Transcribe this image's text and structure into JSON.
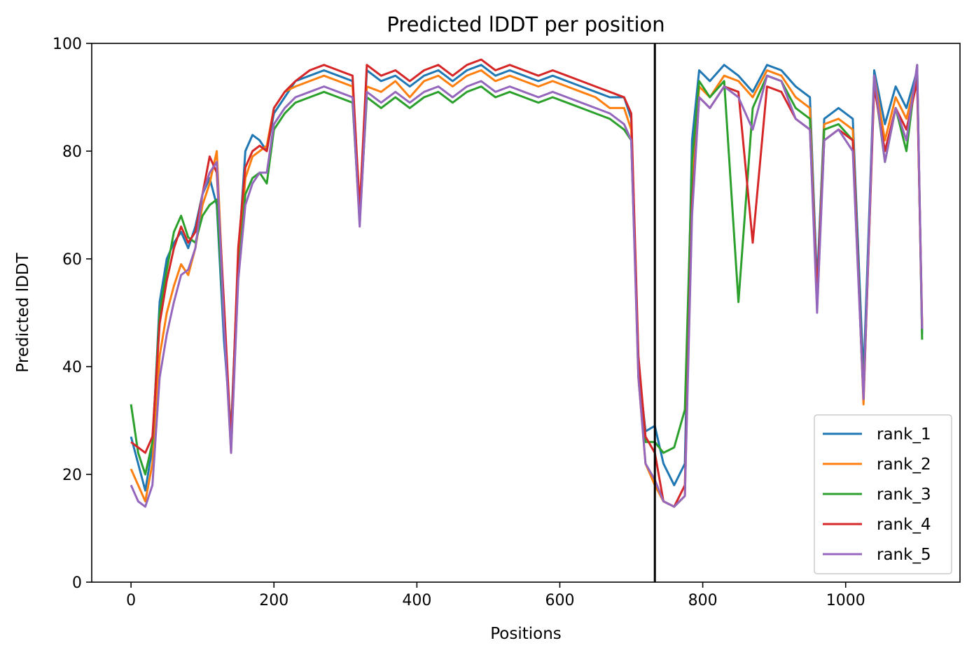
{
  "chart_data": {
    "type": "line",
    "title": "Predicted lDDT per position",
    "xlabel": "Positions",
    "ylabel": "Predicted lDDT",
    "xlim": [
      -55,
      1160
    ],
    "ylim": [
      0,
      100
    ],
    "xticks": [
      0,
      200,
      400,
      600,
      800,
      1000
    ],
    "yticks": [
      0,
      20,
      40,
      60,
      80,
      100
    ],
    "grid": false,
    "legend_position": "lower-right",
    "vline": {
      "x": 733,
      "color": "#000000"
    },
    "series": [
      {
        "name": "rank_1",
        "color": "#1f77b4",
        "x": [
          0,
          10,
          20,
          30,
          40,
          50,
          60,
          70,
          80,
          90,
          100,
          110,
          120,
          130,
          140,
          150,
          160,
          170,
          180,
          190,
          200,
          215,
          230,
          250,
          270,
          290,
          310,
          320,
          330,
          350,
          370,
          390,
          410,
          430,
          450,
          470,
          490,
          510,
          530,
          550,
          570,
          590,
          610,
          630,
          650,
          670,
          690,
          700,
          710,
          720,
          733,
          745,
          760,
          775,
          785,
          795,
          810,
          830,
          850,
          870,
          890,
          910,
          930,
          950,
          960,
          970,
          990,
          1010,
          1025,
          1040,
          1055,
          1070,
          1085,
          1100,
          1107
        ],
        "y": [
          27,
          22,
          17,
          25,
          52,
          60,
          63,
          65,
          62,
          66,
          72,
          75,
          70,
          45,
          28,
          60,
          80,
          83,
          82,
          80,
          87,
          90,
          93,
          94,
          95,
          94,
          93,
          68,
          95,
          93,
          94,
          92,
          94,
          95,
          93,
          95,
          96,
          94,
          95,
          94,
          93,
          94,
          93,
          92,
          91,
          90,
          90,
          86,
          40,
          28,
          29,
          22,
          18,
          22,
          82,
          95,
          93,
          96,
          94,
          91,
          96,
          95,
          92,
          90,
          55,
          86,
          88,
          86,
          38,
          95,
          85,
          92,
          88,
          95,
          46
        ]
      },
      {
        "name": "rank_2",
        "color": "#ff7f0e",
        "x": [
          0,
          10,
          20,
          30,
          40,
          50,
          60,
          70,
          80,
          90,
          100,
          110,
          120,
          130,
          140,
          150,
          160,
          170,
          180,
          190,
          200,
          215,
          230,
          250,
          270,
          290,
          310,
          320,
          330,
          350,
          370,
          390,
          410,
          430,
          450,
          470,
          490,
          510,
          530,
          550,
          570,
          590,
          610,
          630,
          650,
          670,
          690,
          700,
          710,
          720,
          733,
          745,
          760,
          775,
          785,
          795,
          810,
          830,
          850,
          870,
          890,
          910,
          930,
          950,
          960,
          970,
          990,
          1010,
          1025,
          1040,
          1055,
          1070,
          1085,
          1100,
          1107
        ],
        "y": [
          21,
          18,
          15,
          22,
          42,
          50,
          55,
          59,
          57,
          62,
          70,
          74,
          80,
          50,
          24,
          58,
          75,
          79,
          80,
          81,
          88,
          91,
          92,
          93,
          94,
          93,
          92,
          70,
          92,
          91,
          93,
          90,
          93,
          94,
          92,
          94,
          95,
          93,
          94,
          93,
          92,
          93,
          92,
          91,
          90,
          88,
          88,
          84,
          38,
          22,
          18,
          15,
          14,
          16,
          72,
          92,
          90,
          94,
          93,
          90,
          95,
          94,
          90,
          88,
          52,
          85,
          86,
          84,
          33,
          94,
          82,
          90,
          86,
          94,
          48
        ]
      },
      {
        "name": "rank_3",
        "color": "#2ca02c",
        "x": [
          0,
          10,
          20,
          30,
          40,
          50,
          60,
          70,
          80,
          90,
          100,
          110,
          120,
          130,
          140,
          150,
          160,
          170,
          180,
          190,
          200,
          215,
          230,
          250,
          270,
          290,
          310,
          320,
          330,
          350,
          370,
          390,
          410,
          430,
          450,
          470,
          490,
          510,
          530,
          550,
          570,
          590,
          610,
          630,
          650,
          670,
          690,
          700,
          710,
          720,
          733,
          745,
          760,
          775,
          785,
          795,
          810,
          830,
          850,
          870,
          890,
          910,
          930,
          950,
          960,
          970,
          990,
          1010,
          1025,
          1040,
          1055,
          1070,
          1085,
          1100,
          1107
        ],
        "y": [
          33,
          24,
          20,
          26,
          50,
          58,
          65,
          68,
          64,
          63,
          68,
          70,
          71,
          48,
          27,
          57,
          72,
          75,
          76,
          74,
          84,
          87,
          89,
          90,
          91,
          90,
          89,
          67,
          90,
          88,
          90,
          88,
          90,
          91,
          89,
          91,
          92,
          90,
          91,
          90,
          89,
          90,
          89,
          88,
          87,
          86,
          84,
          82,
          40,
          26,
          26,
          24,
          25,
          32,
          78,
          93,
          90,
          93,
          52,
          88,
          94,
          93,
          88,
          86,
          51,
          84,
          85,
          82,
          35,
          93,
          78,
          88,
          80,
          96,
          45
        ]
      },
      {
        "name": "rank_4",
        "color": "#d62728",
        "x": [
          0,
          10,
          20,
          30,
          40,
          50,
          60,
          70,
          80,
          90,
          100,
          110,
          120,
          130,
          140,
          150,
          160,
          170,
          180,
          190,
          200,
          215,
          230,
          250,
          270,
          290,
          310,
          320,
          330,
          350,
          370,
          390,
          410,
          430,
          450,
          470,
          490,
          510,
          530,
          550,
          570,
          590,
          610,
          630,
          650,
          670,
          690,
          700,
          710,
          720,
          733,
          745,
          760,
          775,
          785,
          795,
          810,
          830,
          850,
          870,
          890,
          910,
          930,
          950,
          960,
          970,
          990,
          1010,
          1025,
          1040,
          1055,
          1070,
          1085,
          1100,
          1107
        ],
        "y": [
          26,
          25,
          24,
          27,
          48,
          56,
          62,
          66,
          63,
          65,
          72,
          79,
          76,
          52,
          26,
          62,
          77,
          80,
          81,
          80,
          88,
          91,
          93,
          95,
          96,
          95,
          94,
          69,
          96,
          94,
          95,
          93,
          95,
          96,
          94,
          96,
          97,
          95,
          96,
          95,
          94,
          95,
          94,
          93,
          92,
          91,
          90,
          87,
          42,
          27,
          24,
          15,
          14,
          18,
          70,
          90,
          88,
          92,
          91,
          63,
          92,
          91,
          86,
          84,
          53,
          82,
          84,
          82,
          34,
          92,
          80,
          88,
          84,
          93,
          47
        ]
      },
      {
        "name": "rank_5",
        "color": "#9467bd",
        "x": [
          0,
          10,
          20,
          30,
          40,
          50,
          60,
          70,
          80,
          90,
          100,
          110,
          120,
          130,
          140,
          150,
          160,
          170,
          180,
          190,
          200,
          215,
          230,
          250,
          270,
          290,
          310,
          320,
          330,
          350,
          370,
          390,
          410,
          430,
          450,
          470,
          490,
          510,
          530,
          550,
          570,
          590,
          610,
          630,
          650,
          670,
          690,
          700,
          710,
          720,
          733,
          745,
          760,
          775,
          785,
          795,
          810,
          830,
          850,
          870,
          890,
          910,
          930,
          950,
          960,
          970,
          990,
          1010,
          1025,
          1040,
          1055,
          1070,
          1085,
          1100,
          1107
        ],
        "y": [
          18,
          15,
          14,
          18,
          38,
          46,
          52,
          57,
          58,
          62,
          72,
          76,
          78,
          48,
          24,
          56,
          70,
          74,
          76,
          76,
          85,
          88,
          90,
          91,
          92,
          91,
          90,
          66,
          91,
          89,
          91,
          89,
          91,
          92,
          90,
          92,
          93,
          91,
          92,
          91,
          90,
          91,
          90,
          89,
          88,
          87,
          85,
          82,
          38,
          22,
          19,
          15,
          14,
          16,
          68,
          90,
          88,
          92,
          90,
          84,
          94,
          93,
          86,
          84,
          50,
          82,
          84,
          80,
          34,
          94,
          78,
          88,
          82,
          96,
          47
        ]
      }
    ]
  }
}
